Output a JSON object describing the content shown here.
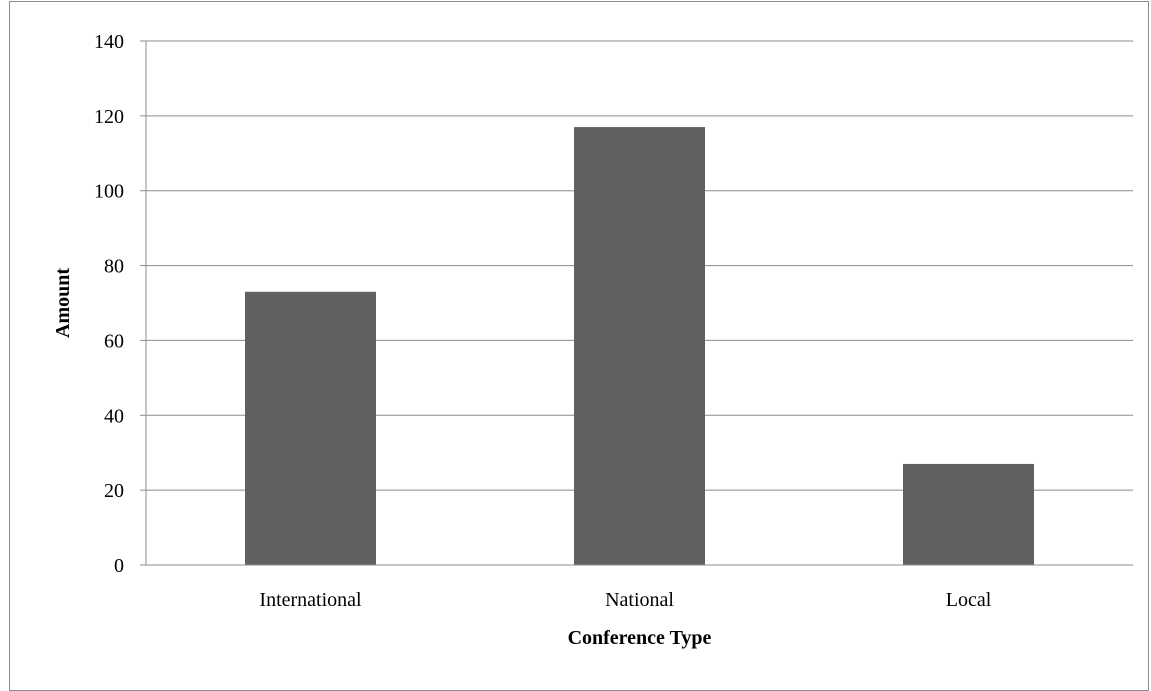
{
  "chart_data": {
    "type": "bar",
    "title": "",
    "xlabel": "Conference Type",
    "ylabel": "Amount",
    "categories": [
      "International",
      "National",
      "Local"
    ],
    "values": [
      73,
      117,
      27
    ],
    "ylim": [
      0,
      140
    ],
    "yticks": [
      0,
      20,
      40,
      60,
      80,
      100,
      120,
      140
    ],
    "grid": true,
    "legend": "none",
    "bar_color": "#616161",
    "grid_color": "#8c8c8c"
  }
}
